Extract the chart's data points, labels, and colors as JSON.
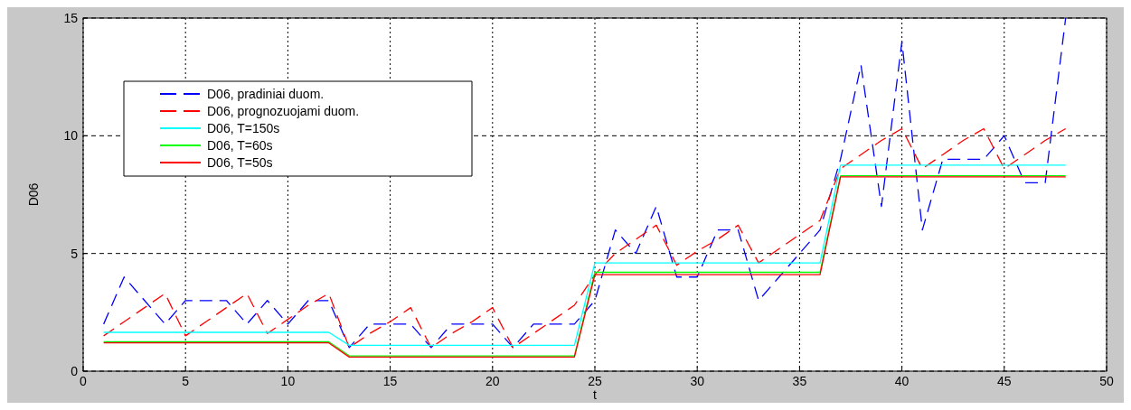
{
  "chart_data": {
    "type": "line",
    "xlabel": "t",
    "ylabel": "D06",
    "x": [
      1,
      2,
      3,
      4,
      5,
      6,
      7,
      8,
      9,
      10,
      11,
      12,
      13,
      14,
      15,
      16,
      17,
      18,
      19,
      20,
      21,
      22,
      23,
      24,
      25,
      26,
      27,
      28,
      29,
      30,
      31,
      32,
      33,
      34,
      35,
      36,
      37,
      38,
      39,
      40,
      41,
      42,
      43,
      44,
      45,
      46,
      47,
      48
    ],
    "xlim": [
      0,
      50
    ],
    "xticks": [
      0,
      5,
      10,
      15,
      20,
      25,
      30,
      35,
      40,
      45,
      50
    ],
    "ylim": [
      0,
      15
    ],
    "yticks": [
      0,
      5,
      10,
      15
    ],
    "grid": true,
    "legend": "top left",
    "series": [
      {
        "name": "D06, pradiniai duom.",
        "color": "#0000ff",
        "line_style": "dashed",
        "values": [
          2,
          4,
          3,
          2,
          3,
          3,
          3,
          2,
          3,
          2,
          3,
          3,
          1,
          2,
          2,
          2,
          1,
          2,
          2,
          2,
          1,
          2,
          2,
          2,
          3,
          6,
          5,
          7,
          4,
          4,
          6,
          6,
          3,
          4,
          5,
          6,
          9,
          13,
          7,
          14,
          6,
          9,
          9,
          9,
          10,
          8,
          8,
          15
        ]
      },
      {
        "name": "D06, prognozuojami duom.",
        "color": "#ff0000",
        "line_style": "dashed",
        "values": [
          1.5,
          2.1,
          2.7,
          3.3,
          1.5,
          2.1,
          2.7,
          3.3,
          1.6,
          2.2,
          2.8,
          3.3,
          1,
          1.6,
          2.1,
          2.7,
          1,
          1.6,
          2.1,
          2.7,
          1,
          1.6,
          2.2,
          2.8,
          4.1,
          5,
          5.6,
          6.2,
          4.5,
          5.1,
          5.6,
          6.2,
          4.6,
          5.2,
          5.8,
          6.4,
          8.6,
          9.2,
          9.8,
          10.3,
          8.6,
          9.2,
          9.8,
          10.3,
          8.6,
          9.2,
          9.8,
          10.3
        ]
      },
      {
        "name": "D06, T=150s",
        "color": "#00ffff",
        "line_style": "solid",
        "values": [
          1.65,
          1.65,
          1.65,
          1.65,
          1.65,
          1.65,
          1.65,
          1.65,
          1.65,
          1.65,
          1.65,
          1.65,
          1.1,
          1.1,
          1.1,
          1.1,
          1.1,
          1.1,
          1.1,
          1.1,
          1.1,
          1.1,
          1.1,
          1.1,
          4.6,
          4.6,
          4.6,
          4.6,
          4.6,
          4.6,
          4.6,
          4.6,
          4.6,
          4.6,
          4.6,
          4.6,
          8.75,
          8.75,
          8.75,
          8.75,
          8.75,
          8.75,
          8.75,
          8.75,
          8.75,
          8.75,
          8.75,
          8.75
        ]
      },
      {
        "name": "D06, T=60s",
        "color": "#00ff00",
        "line_style": "solid",
        "values": [
          1.25,
          1.25,
          1.25,
          1.25,
          1.25,
          1.25,
          1.25,
          1.25,
          1.25,
          1.25,
          1.25,
          1.25,
          0.65,
          0.65,
          0.65,
          0.65,
          0.65,
          0.65,
          0.65,
          0.65,
          0.65,
          0.65,
          0.65,
          0.65,
          4.2,
          4.2,
          4.2,
          4.2,
          4.2,
          4.2,
          4.2,
          4.2,
          4.2,
          4.2,
          4.2,
          4.2,
          8.3,
          8.3,
          8.3,
          8.3,
          8.3,
          8.3,
          8.3,
          8.3,
          8.3,
          8.3,
          8.3,
          8.3
        ]
      },
      {
        "name": "D06, T=50s",
        "color": "#ff0000",
        "line_style": "solid",
        "values": [
          1.2,
          1.2,
          1.2,
          1.2,
          1.2,
          1.2,
          1.2,
          1.2,
          1.2,
          1.2,
          1.2,
          1.2,
          0.6,
          0.6,
          0.6,
          0.6,
          0.6,
          0.6,
          0.6,
          0.6,
          0.6,
          0.6,
          0.6,
          0.6,
          4.1,
          4.1,
          4.1,
          4.1,
          4.1,
          4.1,
          4.1,
          4.1,
          4.1,
          4.1,
          4.1,
          4.1,
          8.25,
          8.25,
          8.25,
          8.25,
          8.25,
          8.25,
          8.25,
          8.25,
          8.25,
          8.25,
          8.25,
          8.25
        ]
      }
    ]
  }
}
